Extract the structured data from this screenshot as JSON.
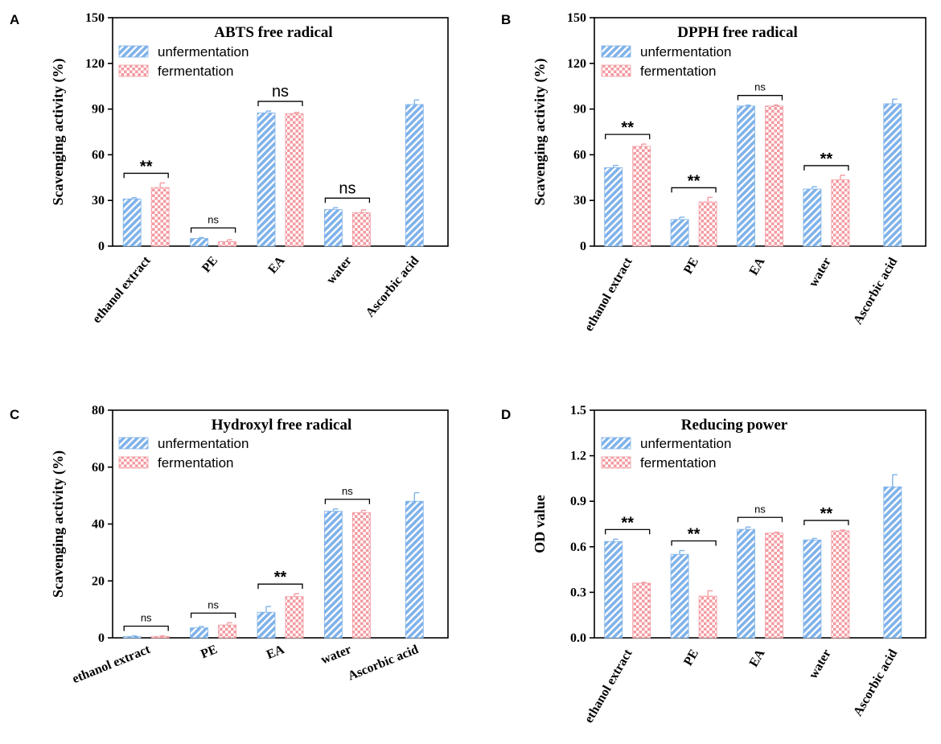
{
  "legend": {
    "series_colors": {
      "unfermentation": "#7fb2e9",
      "fermentation": "#f39aa0"
    }
  },
  "chart_data": [
    {
      "panel": "A",
      "type": "bar",
      "title": "ABTS free radical",
      "ylabel": "Scavenging activity (%)",
      "xlabel": "",
      "ylim": [
        0,
        150
      ],
      "yticks": [
        0,
        30,
        60,
        90,
        120,
        150
      ],
      "ytick_labels": [
        "0",
        "30",
        "60",
        "90",
        "120",
        "150"
      ],
      "categories": [
        "ethanol extract",
        "PE",
        "EA",
        "water",
        "Ascorbic acid"
      ],
      "series": [
        {
          "name": "unfermentation",
          "values": [
            31,
            5,
            87.5,
            24,
            93
          ],
          "errors": [
            0.8,
            0.6,
            1.2,
            1.2,
            3
          ]
        },
        {
          "name": "fermentation",
          "values": [
            38.5,
            3,
            87,
            22,
            null
          ],
          "errors": [
            3,
            1.2,
            0.8,
            1.8,
            null
          ]
        }
      ],
      "significance": [
        "**",
        "ns",
        "ns",
        "ns",
        null
      ]
    },
    {
      "panel": "B",
      "type": "bar",
      "title": "DPPH free radical",
      "ylabel": "Scavenging activity (%)",
      "xlabel": "",
      "ylim": [
        0,
        150
      ],
      "yticks": [
        0,
        30,
        60,
        90,
        120,
        150
      ],
      "ytick_labels": [
        "0",
        "30",
        "60",
        "90",
        "120",
        "150"
      ],
      "categories": [
        "ethanol extract",
        "PE",
        "EA",
        "water",
        "Ascorbic acid"
      ],
      "series": [
        {
          "name": "unfermentation",
          "values": [
            51.5,
            17.5,
            92,
            37.5,
            93.5
          ],
          "errors": [
            1.5,
            1.5,
            0.6,
            1.5,
            3
          ]
        },
        {
          "name": "fermentation",
          "values": [
            65.5,
            29,
            92,
            43.5,
            null
          ],
          "errors": [
            1.5,
            3,
            0.6,
            3,
            null
          ]
        }
      ],
      "significance": [
        "**",
        "**",
        "ns",
        "**",
        null
      ]
    },
    {
      "panel": "C",
      "type": "bar",
      "title": "Hydroxyl free radical",
      "ylabel": "Scavenging activity (%)",
      "xlabel": "",
      "ylim": [
        0,
        80
      ],
      "yticks": [
        0,
        20,
        40,
        60,
        80
      ],
      "ytick_labels": [
        "0",
        "20",
        "40",
        "60",
        "80"
      ],
      "categories": [
        "ethanol extract",
        "PE",
        "EA",
        "water",
        "Ascorbic acid"
      ],
      "series": [
        {
          "name": "unfermentation",
          "values": [
            0.5,
            3.5,
            9,
            44.5,
            48
          ],
          "errors": [
            0.2,
            0.5,
            2,
            0.8,
            3
          ]
        },
        {
          "name": "fermentation",
          "values": [
            0.5,
            4.5,
            14.5,
            44,
            null
          ],
          "errors": [
            0.2,
            0.8,
            1,
            0.8,
            null
          ]
        }
      ],
      "significance": [
        "ns",
        "ns",
        "**",
        "ns",
        null
      ]
    },
    {
      "panel": "D",
      "type": "bar",
      "title": "Reducing power",
      "ylabel": "OD value",
      "xlabel": "",
      "ylim": [
        0,
        1.5
      ],
      "yticks": [
        0,
        0.3,
        0.6,
        0.9,
        1.2,
        1.5
      ],
      "ytick_labels": [
        "0.0",
        "0.3",
        "0.6",
        "0.9",
        "1.2",
        "1.5"
      ],
      "categories": [
        "ethanol extract",
        "PE",
        "EA",
        "water",
        "Ascorbic acid"
      ],
      "series": [
        {
          "name": "unfermentation",
          "values": [
            0.635,
            0.55,
            0.715,
            0.645,
            0.995
          ],
          "errors": [
            0.015,
            0.025,
            0.015,
            0.01,
            0.08
          ]
        },
        {
          "name": "fermentation",
          "values": [
            0.36,
            0.275,
            0.69,
            0.705,
            null
          ],
          "errors": [
            0.005,
            0.035,
            0.005,
            0.005,
            null
          ]
        }
      ],
      "significance": [
        "**",
        "**",
        "ns",
        "**",
        null
      ]
    }
  ]
}
